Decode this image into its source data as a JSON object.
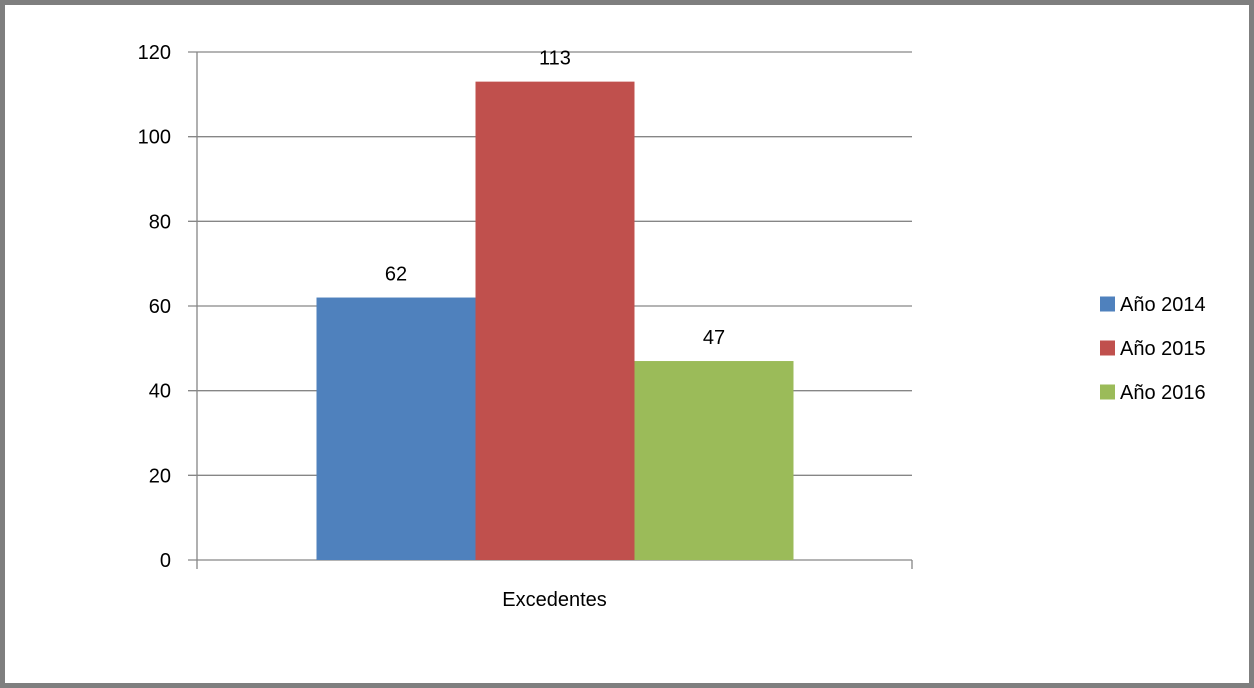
{
  "chart_data": {
    "type": "bar",
    "categories": [
      "Excedentes"
    ],
    "series": [
      {
        "name": "Año 2014",
        "values": [
          62
        ],
        "color": "#4f81bd"
      },
      {
        "name": "Año 2015",
        "values": [
          113
        ],
        "color": "#c0504d"
      },
      {
        "name": "Año 2016",
        "values": [
          47
        ],
        "color": "#9bbb59"
      }
    ],
    "ylim": [
      0,
      120
    ],
    "yticks": [
      0,
      20,
      40,
      60,
      80,
      100,
      120
    ],
    "data_labels": true,
    "grid": true,
    "legend": "right",
    "title": "",
    "xlabel": "",
    "ylabel": ""
  },
  "colors": {
    "gridline": "#868686",
    "frame_border": "#7f7f7f"
  }
}
